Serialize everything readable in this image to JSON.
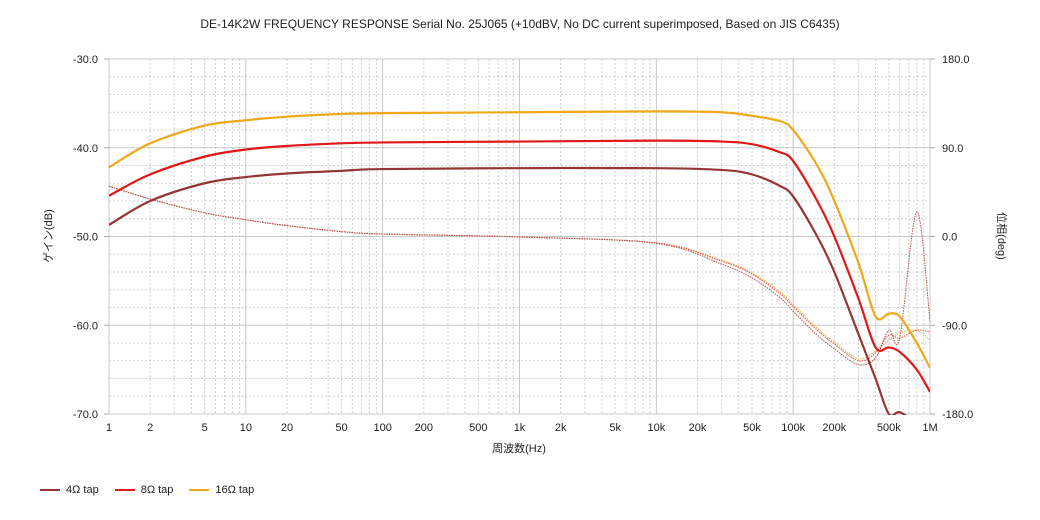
{
  "chart_data": {
    "type": "line",
    "title": "DE-14K2W FREQUENCY RESPONSE Serial No. 25J065 (+10dBV,  No DC current superimposed,  Based on JIS C6435)",
    "xlabel": "周波数(Hz)",
    "ylabel": "ゲイン(dB)",
    "y2label": "位相(deg)",
    "xscale": "log",
    "xlim": [
      1,
      1000000
    ],
    "ylim": [
      -70,
      -30
    ],
    "y2lim": [
      -180,
      180
    ],
    "grid": true,
    "legend_position": "bottom-left",
    "xticks": [
      {
        "v": 1,
        "l": "1"
      },
      {
        "v": 2,
        "l": "2"
      },
      {
        "v": 5,
        "l": "5"
      },
      {
        "v": 10,
        "l": "10"
      },
      {
        "v": 20,
        "l": "20"
      },
      {
        "v": 50,
        "l": "50"
      },
      {
        "v": 100,
        "l": "100"
      },
      {
        "v": 200,
        "l": "200"
      },
      {
        "v": 500,
        "l": "500"
      },
      {
        "v": 1000,
        "l": "1k"
      },
      {
        "v": 2000,
        "l": "2k"
      },
      {
        "v": 5000,
        "l": "5k"
      },
      {
        "v": 10000,
        "l": "10k"
      },
      {
        "v": 20000,
        "l": "20k"
      },
      {
        "v": 50000,
        "l": "50k"
      },
      {
        "v": 100000,
        "l": "100k"
      },
      {
        "v": 200000,
        "l": "200k"
      },
      {
        "v": 500000,
        "l": "500k"
      },
      {
        "v": 1000000,
        "l": "1M"
      }
    ],
    "yticks": [
      "-30.0",
      "-40.0",
      "-50.0",
      "-60.0",
      "-70.0"
    ],
    "y2ticks": [
      "180.0",
      "90.0",
      "0.0",
      "-90.0",
      "-180.0"
    ],
    "x": [
      1,
      2,
      5,
      10,
      20,
      50,
      100,
      1000,
      10000,
      30000,
      50000,
      80000,
      100000,
      150000,
      200000,
      300000,
      400000,
      500000,
      600000,
      800000,
      1000000
    ],
    "series": [
      {
        "name": "4Ω tap",
        "color": "#943634",
        "axis": "gain",
        "values": [
          -48.7,
          -46,
          -44,
          -43.3,
          -42.9,
          -42.6,
          -42.4,
          -42.3,
          -42.3,
          -42.5,
          -43,
          -44.3,
          -45.5,
          -50,
          -54,
          -61,
          -66,
          -70,
          -69.8,
          -71,
          -72
        ]
      },
      {
        "name": "8Ω tap",
        "color": "#e01818",
        "axis": "gain",
        "values": [
          -45.4,
          -43,
          -41,
          -40.2,
          -39.8,
          -39.5,
          -39.4,
          -39.3,
          -39.2,
          -39.3,
          -39.6,
          -40.5,
          -41.5,
          -46,
          -50,
          -57,
          -62.5,
          -62.5,
          -63,
          -65,
          -67.5
        ]
      },
      {
        "name": "16Ω tap",
        "color": "#f0a818",
        "axis": "gain",
        "values": [
          -42.2,
          -39.5,
          -37.5,
          -36.9,
          -36.5,
          -36.2,
          -36.1,
          -36,
          -35.9,
          -36,
          -36.4,
          -37,
          -38,
          -42,
          -46,
          -53,
          -59,
          -58.7,
          -59,
          -62,
          -64.8
        ]
      },
      {
        "name": "4Ω tap phase",
        "color": "#b05050",
        "axis": "phase",
        "values": [
          51,
          38,
          24,
          17,
          11,
          5,
          2.5,
          -0.5,
          -7,
          -28,
          -42,
          -62,
          -76,
          -100,
          -114,
          -130,
          -123,
          -95,
          -103,
          25,
          -86
        ]
      },
      {
        "name": "8Ω tap phase",
        "color": "#e85050",
        "axis": "phase",
        "values": [
          51,
          38,
          24,
          17,
          11,
          5,
          2.5,
          -0.5,
          -6.5,
          -25,
          -38,
          -58,
          -71,
          -95,
          -109,
          -126,
          -118,
          -100,
          -103,
          -95,
          -97
        ]
      },
      {
        "name": "16Ω tap phase",
        "color": "#f0b040",
        "axis": "phase",
        "values": [
          51,
          38,
          24,
          17,
          11,
          5,
          2.5,
          -0.5,
          -6.5,
          -24,
          -37,
          -56,
          -69,
          -93,
          -107,
          -124,
          -116,
          -105,
          -98,
          -95,
          -105
        ]
      }
    ]
  },
  "legend": [
    {
      "label": "4Ω tap",
      "color": "#943634"
    },
    {
      "label": "8Ω tap",
      "color": "#e01818"
    },
    {
      "label": "16Ω tap",
      "color": "#f0a818"
    }
  ]
}
